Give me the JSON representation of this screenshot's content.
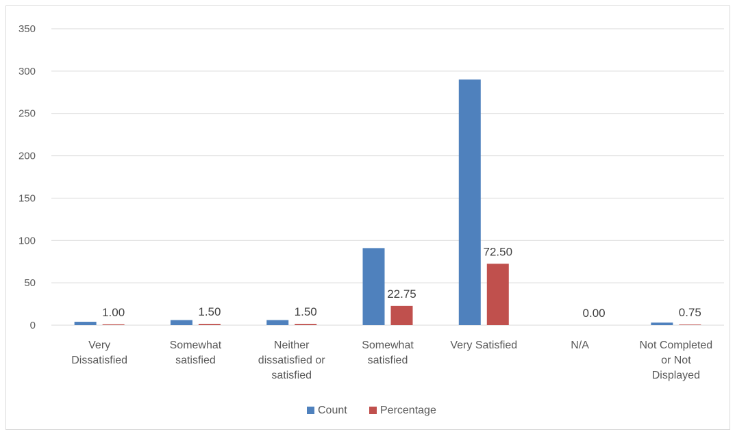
{
  "chart_data": {
    "type": "bar",
    "categories": [
      [
        "Very",
        "Dissatisfied"
      ],
      [
        "Somewhat",
        "satisfied"
      ],
      [
        "Neither",
        "dissatisfied or",
        "satisfied"
      ],
      [
        "Somewhat",
        "satisfied"
      ],
      [
        "Very Satisfied"
      ],
      [
        "N/A"
      ],
      [
        "Not Completed",
        "or Not",
        "Displayed"
      ]
    ],
    "series": [
      {
        "name": "Count",
        "color": "#4f81bd",
        "values": [
          4,
          6,
          6,
          91,
          290,
          0,
          3
        ]
      },
      {
        "name": "Percentage",
        "color": "#c0504d",
        "values": [
          1.0,
          1.5,
          1.5,
          22.75,
          72.5,
          0.0,
          0.75
        ],
        "data_labels": [
          "1.00",
          "1.50",
          "1.50",
          "22.75",
          "72.50",
          "0.00",
          "0.75"
        ]
      }
    ],
    "title": "",
    "xlabel": "",
    "ylabel": "",
    "ylim": [
      0,
      350
    ],
    "yticks": [
      0,
      50,
      100,
      150,
      200,
      250,
      300,
      350
    ],
    "grid": true,
    "legend": "bottom"
  }
}
